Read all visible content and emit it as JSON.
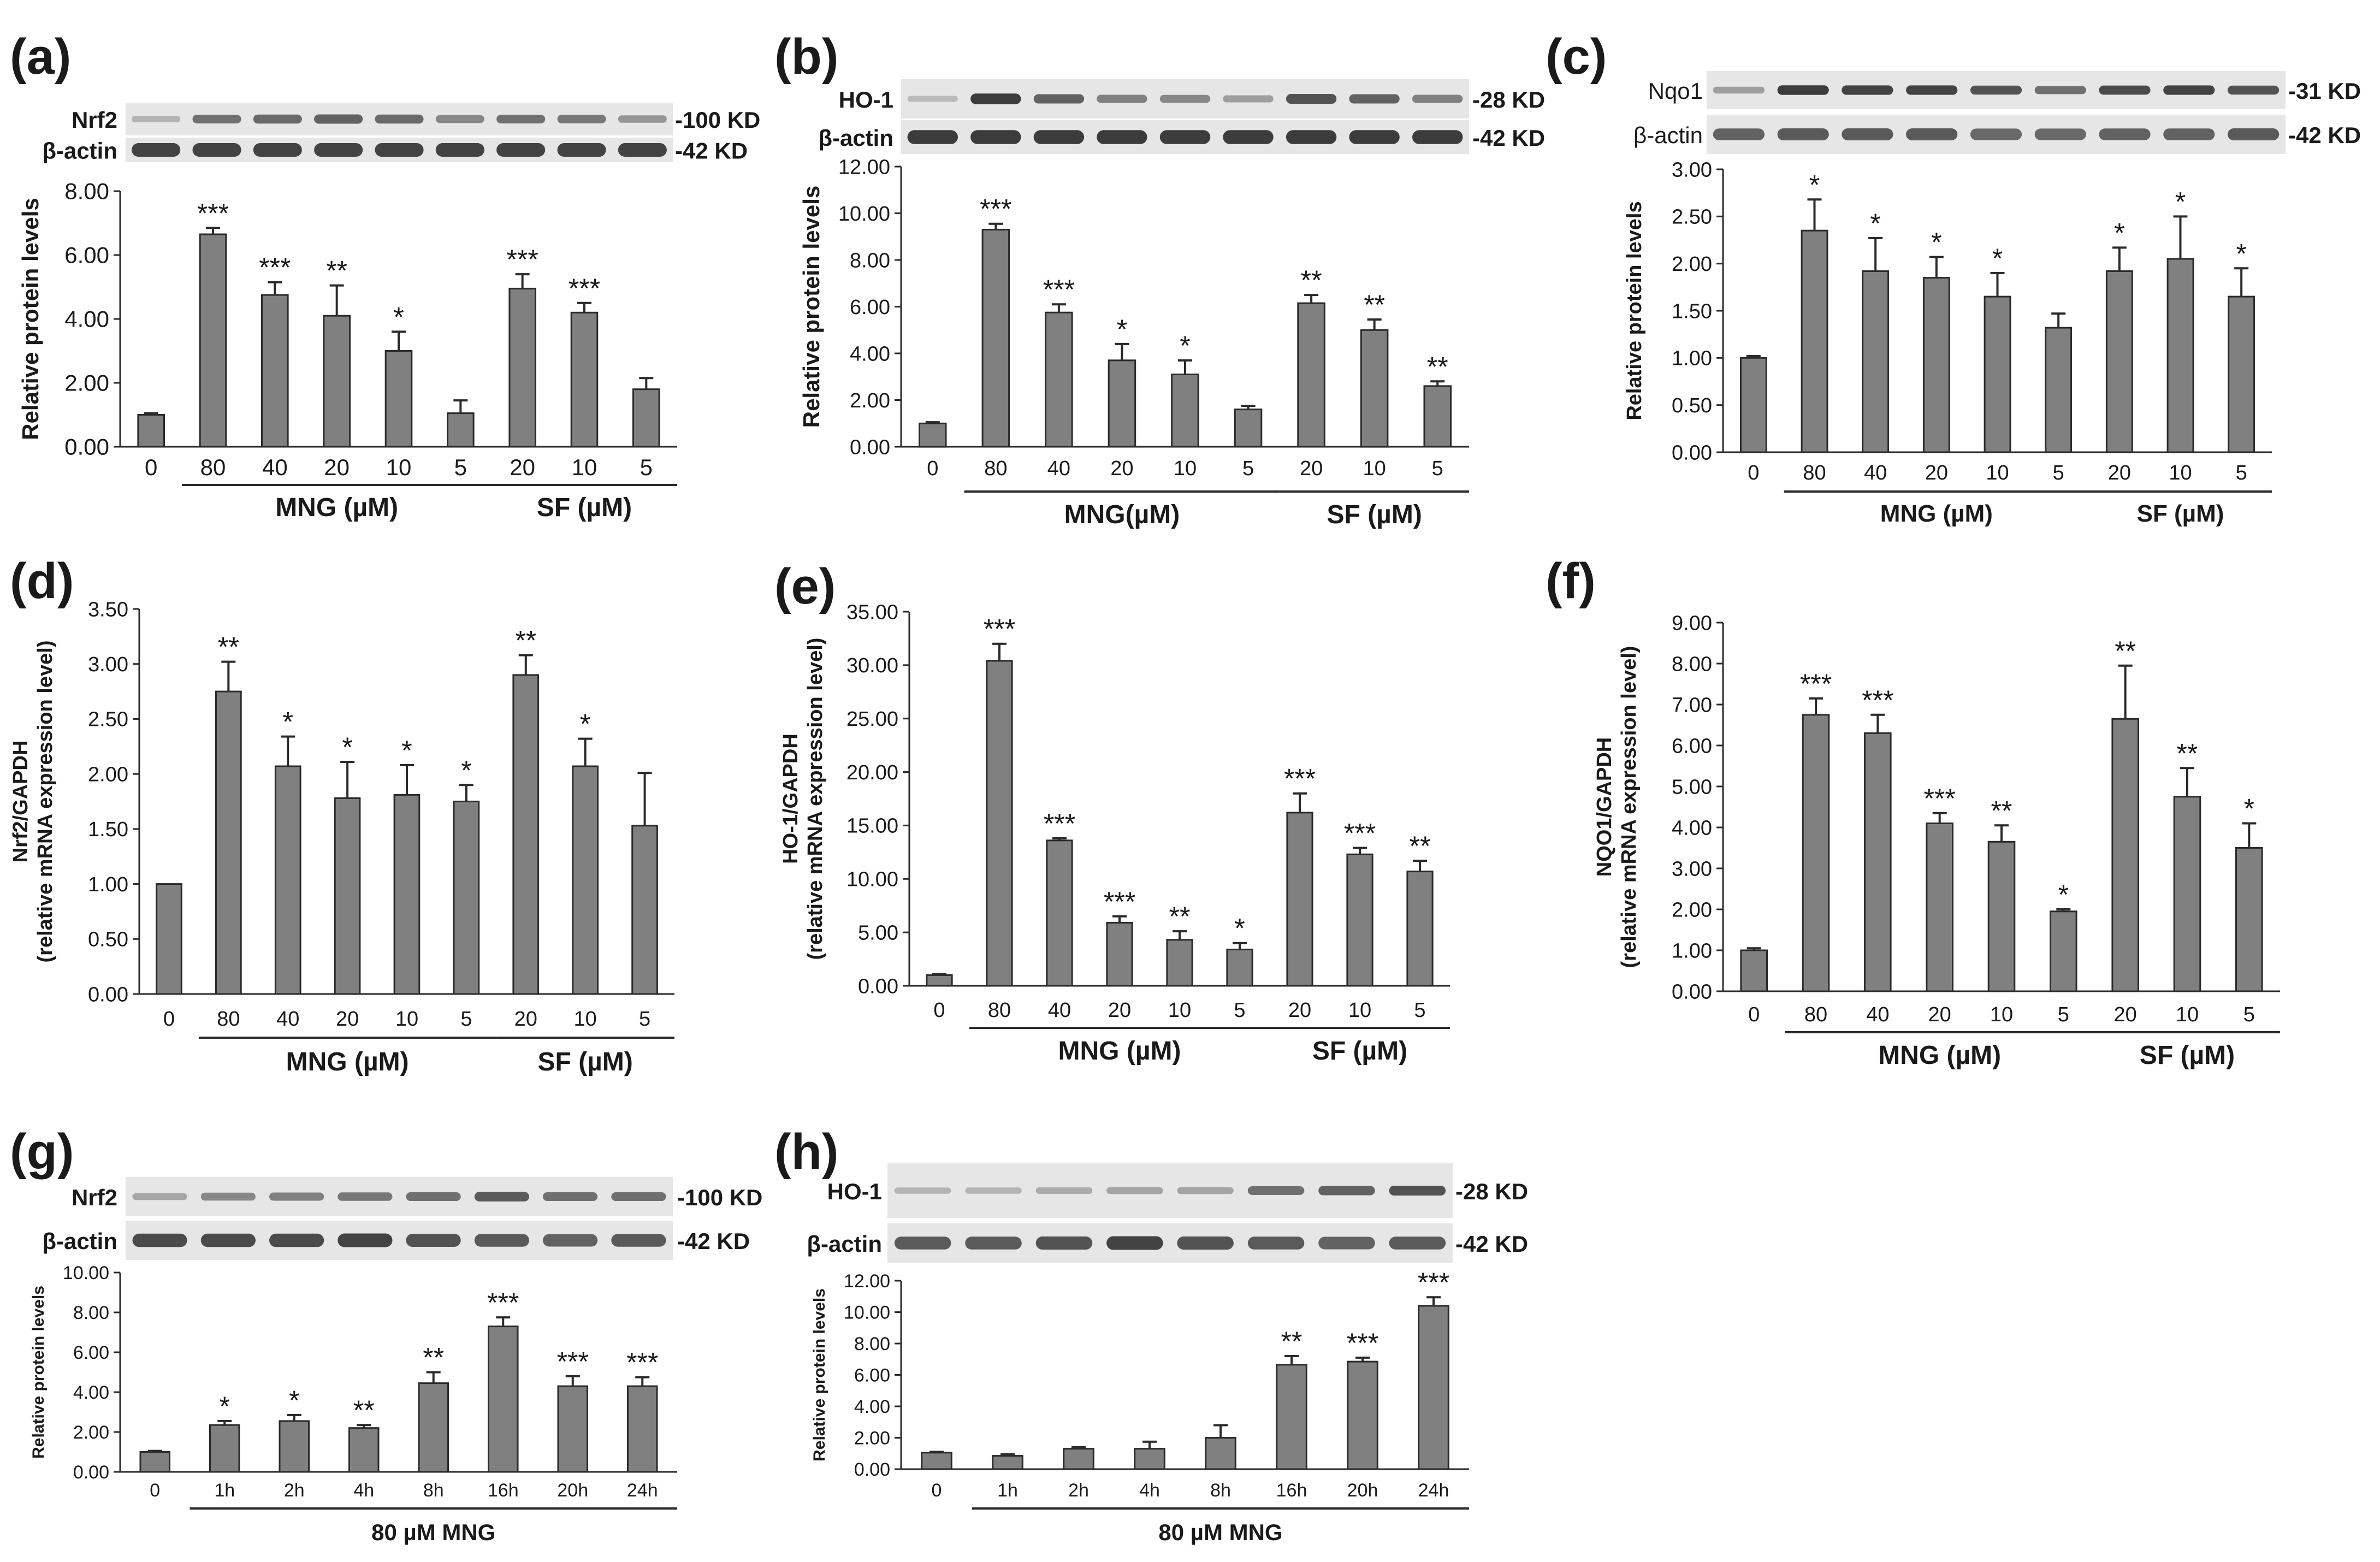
{
  "figure": {
    "colors": {
      "bar": "#808080",
      "bar_stroke": "#2a2a2a",
      "axis": "#2a2a2a",
      "text": "#1a1a1a",
      "blot_bg": "#e6e6e6",
      "band": "#2b2b2b"
    }
  },
  "chart_data": [
    {
      "panel": "(a)",
      "type": "bar",
      "categories": [
        "0",
        "80",
        "40",
        "20",
        "10",
        "5",
        "20",
        "10",
        "5"
      ],
      "values": [
        1.0,
        6.65,
        4.75,
        4.1,
        3.0,
        1.05,
        4.95,
        4.2,
        1.8
      ],
      "errors": [
        0.05,
        0.2,
        0.4,
        0.95,
        0.6,
        0.4,
        0.45,
        0.3,
        0.35
      ],
      "stars": [
        "",
        "***",
        "***",
        "**",
        "*",
        "",
        "***",
        "***",
        ""
      ],
      "ylim": [
        0,
        8
      ],
      "yticks": [
        "0.00",
        "2.00",
        "4.00",
        "6.00",
        "8.00"
      ],
      "ylabel": "Relative protein levels",
      "groups": [
        {
          "label": "MNG (µM)",
          "from": 1,
          "to": 5
        },
        {
          "label": "SF (µM)",
          "from": 6,
          "to": 8
        }
      ],
      "blots": [
        {
          "label": "Nrf2",
          "kd": "-100 KD",
          "intensity": [
            0.15,
            0.6,
            0.65,
            0.7,
            0.65,
            0.45,
            0.6,
            0.55,
            0.35
          ]
        },
        {
          "label": "β-actin",
          "kd": "-42 KD",
          "intensity": [
            0.9,
            0.9,
            0.9,
            0.9,
            0.9,
            0.9,
            0.9,
            0.9,
            0.9
          ]
        }
      ]
    },
    {
      "panel": "(b)",
      "type": "bar",
      "categories": [
        "0",
        "80",
        "40",
        "20",
        "10",
        "5",
        "20",
        "10",
        "5"
      ],
      "values": [
        1.0,
        9.3,
        5.75,
        3.7,
        3.1,
        1.6,
        6.15,
        5.0,
        2.6
      ],
      "errors": [
        0.05,
        0.25,
        0.35,
        0.7,
        0.6,
        0.15,
        0.35,
        0.45,
        0.2
      ],
      "stars": [
        "",
        "***",
        "***",
        "*",
        "*",
        "",
        "**",
        "**",
        "**"
      ],
      "ylim": [
        0,
        12
      ],
      "yticks": [
        "0.00",
        "2.00",
        "4.00",
        "6.00",
        "8.00",
        "10.00",
        "12.00"
      ],
      "ylabel": "Relative protein levels",
      "groups": [
        {
          "label": "MNG(µM)",
          "from": 1,
          "to": 5
        },
        {
          "label": "SF (µM)",
          "from": 6,
          "to": 8
        }
      ],
      "blots": [
        {
          "label": "HO-1",
          "kd": "-28 KD",
          "intensity": [
            0.1,
            0.95,
            0.7,
            0.5,
            0.45,
            0.3,
            0.8,
            0.7,
            0.5
          ]
        },
        {
          "label": "β-actin",
          "kd": "-42 KD",
          "intensity": [
            0.95,
            0.95,
            0.95,
            0.95,
            0.95,
            0.95,
            0.95,
            0.95,
            0.95
          ]
        }
      ]
    },
    {
      "panel": "(c)",
      "type": "bar",
      "categories": [
        "0",
        "80",
        "40",
        "20",
        "10",
        "5",
        "20",
        "10",
        "5"
      ],
      "values": [
        1.0,
        2.35,
        1.92,
        1.85,
        1.65,
        1.32,
        1.92,
        2.05,
        1.65
      ],
      "errors": [
        0.02,
        0.33,
        0.35,
        0.22,
        0.25,
        0.15,
        0.25,
        0.45,
        0.3
      ],
      "stars": [
        "",
        "*",
        "*",
        "*",
        "*",
        "",
        "*",
        "*",
        "*"
      ],
      "ylim": [
        0,
        3
      ],
      "yticks": [
        "0.00",
        "0.50",
        "1.00",
        "1.50",
        "2.00",
        "2.50",
        "3.00"
      ],
      "ylabel": "Relative protein levels",
      "groups": [
        {
          "label": "MNG  (µM)",
          "from": 1,
          "to": 5
        },
        {
          "label": "SF (µM)",
          "from": 6,
          "to": 8
        }
      ],
      "blots": [
        {
          "label": "Nqo1",
          "kd": "-31 KD",
          "intensity": [
            0.3,
            0.95,
            0.9,
            0.9,
            0.8,
            0.6,
            0.85,
            0.9,
            0.8
          ]
        },
        {
          "label": "β-actin",
          "kd": "-42 KD",
          "intensity": [
            0.7,
            0.75,
            0.75,
            0.75,
            0.65,
            0.65,
            0.7,
            0.7,
            0.75
          ]
        }
      ]
    },
    {
      "panel": "(d)",
      "type": "bar",
      "categories": [
        "0",
        "80",
        "40",
        "20",
        "10",
        "5",
        "20",
        "10",
        "5"
      ],
      "values": [
        1.0,
        2.75,
        2.07,
        1.78,
        1.81,
        1.75,
        2.9,
        2.07,
        1.53
      ],
      "errors": [
        0.0,
        0.27,
        0.27,
        0.33,
        0.27,
        0.15,
        0.18,
        0.25,
        0.48
      ],
      "stars": [
        "",
        "**",
        "*",
        "*",
        "*",
        "*",
        "**",
        "*",
        ""
      ],
      "ylim": [
        0,
        3.5
      ],
      "yticks": [
        "0.00",
        "0.50",
        "1.00",
        "1.50",
        "2.00",
        "2.50",
        "3.00",
        "3.50"
      ],
      "ylabel": "Nrf2/GAPDH",
      "ylabel2": "(relative mRNA expression level)",
      "groups": [
        {
          "label": "MNG  (µM)",
          "from": 1,
          "to": 5
        },
        {
          "label": "SF (µM)",
          "from": 6,
          "to": 8
        }
      ],
      "blots": []
    },
    {
      "panel": "(e)",
      "type": "bar",
      "categories": [
        "0",
        "80",
        "40",
        "20",
        "10",
        "5",
        "20",
        "10",
        "5"
      ],
      "values": [
        1.0,
        30.4,
        13.6,
        5.9,
        4.3,
        3.4,
        16.2,
        12.3,
        10.7
      ],
      "errors": [
        0.1,
        1.6,
        0.2,
        0.6,
        0.8,
        0.6,
        1.8,
        0.6,
        1.0
      ],
      "stars": [
        "",
        "***",
        "***",
        "***",
        "**",
        "*",
        "***",
        "***",
        "**"
      ],
      "ylim": [
        0,
        35
      ],
      "yticks": [
        "0.00",
        "5.00",
        "10.00",
        "15.00",
        "20.00",
        "25.00",
        "30.00",
        "35.00"
      ],
      "ylabel": "HO-1/GAPDH",
      "ylabel2": "(relative mRNA expression level)",
      "groups": [
        {
          "label": "MNG  (µM)",
          "from": 1,
          "to": 5
        },
        {
          "label": "SF (µM)",
          "from": 6,
          "to": 8
        }
      ],
      "blots": []
    },
    {
      "panel": "(f)",
      "type": "bar",
      "categories": [
        "0",
        "80",
        "40",
        "20",
        "10",
        "5",
        "20",
        "10",
        "5"
      ],
      "values": [
        1.0,
        6.75,
        6.3,
        4.1,
        3.65,
        1.95,
        6.65,
        4.75,
        3.5
      ],
      "errors": [
        0.05,
        0.4,
        0.45,
        0.25,
        0.4,
        0.05,
        1.3,
        0.7,
        0.6
      ],
      "stars": [
        "",
        "***",
        "***",
        "***",
        "**",
        "*",
        "**",
        "**",
        "*"
      ],
      "ylim": [
        0,
        9
      ],
      "yticks": [
        "0.00",
        "1.00",
        "2.00",
        "3.00",
        "4.00",
        "5.00",
        "6.00",
        "7.00",
        "8.00",
        "9.00"
      ],
      "ylabel": "NQO1/GAPDH",
      "ylabel2": "(relative mRNA expression level)",
      "groups": [
        {
          "label": "MNG  (µM)",
          "from": 1,
          "to": 5
        },
        {
          "label": "SF (µM)",
          "from": 6,
          "to": 8
        }
      ],
      "blots": []
    },
    {
      "panel": "(g)",
      "type": "bar",
      "categories": [
        "0",
        "1h",
        "2h",
        "4h",
        "8h",
        "16h",
        "20h",
        "24h"
      ],
      "values": [
        1.0,
        2.35,
        2.55,
        2.2,
        4.45,
        7.3,
        4.3,
        4.3
      ],
      "errors": [
        0.05,
        0.2,
        0.3,
        0.15,
        0.55,
        0.45,
        0.5,
        0.45
      ],
      "stars": [
        "",
        "*",
        "*",
        "**",
        "**",
        "***",
        "***",
        "***"
      ],
      "ylim": [
        0,
        10
      ],
      "yticks": [
        "0.00",
        "2.00",
        "4.00",
        "6.00",
        "8.00",
        "10.00"
      ],
      "ylabel": "Relative protein levels",
      "groups": [
        {
          "label": "80  µM MNG",
          "from": 1,
          "to": 7
        }
      ],
      "blots": [
        {
          "label": "Nrf2",
          "kd": "-100 KD",
          "intensity": [
            0.25,
            0.45,
            0.5,
            0.55,
            0.6,
            0.75,
            0.6,
            0.6
          ]
        },
        {
          "label": "β-actin",
          "kd": "-42 KD",
          "intensity": [
            0.85,
            0.85,
            0.85,
            0.9,
            0.8,
            0.75,
            0.7,
            0.75
          ]
        }
      ]
    },
    {
      "panel": "(h)",
      "type": "bar",
      "categories": [
        "0",
        "1h",
        "2h",
        "4h",
        "8h",
        "16h",
        "20h",
        "24h"
      ],
      "values": [
        1.05,
        0.85,
        1.3,
        1.3,
        2.0,
        6.65,
        6.85,
        10.4
      ],
      "errors": [
        0.05,
        0.1,
        0.1,
        0.45,
        0.8,
        0.55,
        0.25,
        0.55
      ],
      "stars": [
        "",
        "",
        "",
        "",
        "",
        "**",
        "***",
        "***"
      ],
      "ylim": [
        0,
        12
      ],
      "yticks": [
        "0.00",
        "2.00",
        "4.00",
        "6.00",
        "8.00",
        "10.00",
        "12.00"
      ],
      "ylabel": "Relative protein levels",
      "groups": [
        {
          "label": "80  µM MNG",
          "from": 1,
          "to": 7
        }
      ],
      "blots": [
        {
          "label": "HO-1",
          "kd": "-28 KD",
          "intensity": [
            0.15,
            0.15,
            0.2,
            0.25,
            0.25,
            0.6,
            0.7,
            0.8
          ]
        },
        {
          "label": "β-actin",
          "kd": "-42 KD",
          "intensity": [
            0.75,
            0.75,
            0.8,
            0.9,
            0.8,
            0.75,
            0.7,
            0.75
          ]
        }
      ]
    }
  ]
}
